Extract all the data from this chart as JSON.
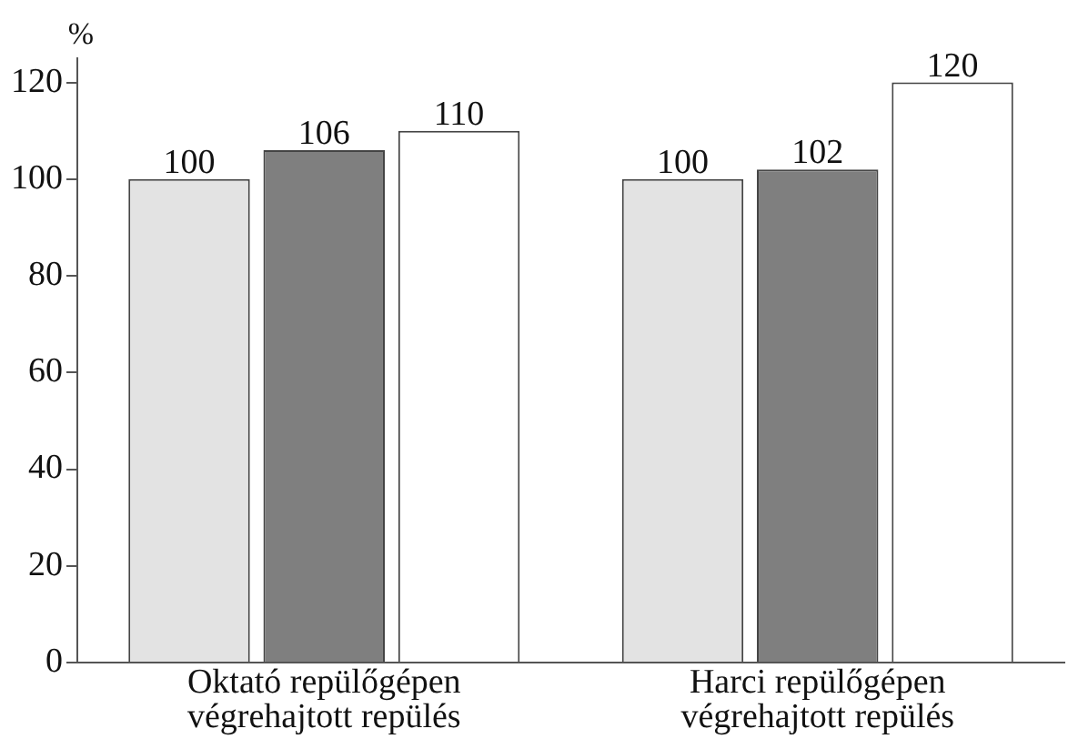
{
  "chart_data": {
    "type": "bar",
    "ylabel": "%",
    "categories": [
      "Oktató repülőgépen végrehajtott repülés",
      "Harci repülőgépen végrehajtott repülés"
    ],
    "series": [
      {
        "color": "#e3e3e3",
        "values": [
          100,
          100
        ]
      },
      {
        "color": "#7f7f7f",
        "values": [
          106,
          102
        ]
      },
      {
        "color": "#ffffff",
        "values": [
          110,
          120
        ]
      }
    ],
    "ylim": [
      0,
      125
    ],
    "yticks": [
      0,
      20,
      40,
      60,
      80,
      100,
      120
    ],
    "grid": false,
    "legend": false,
    "data_labels": true
  }
}
